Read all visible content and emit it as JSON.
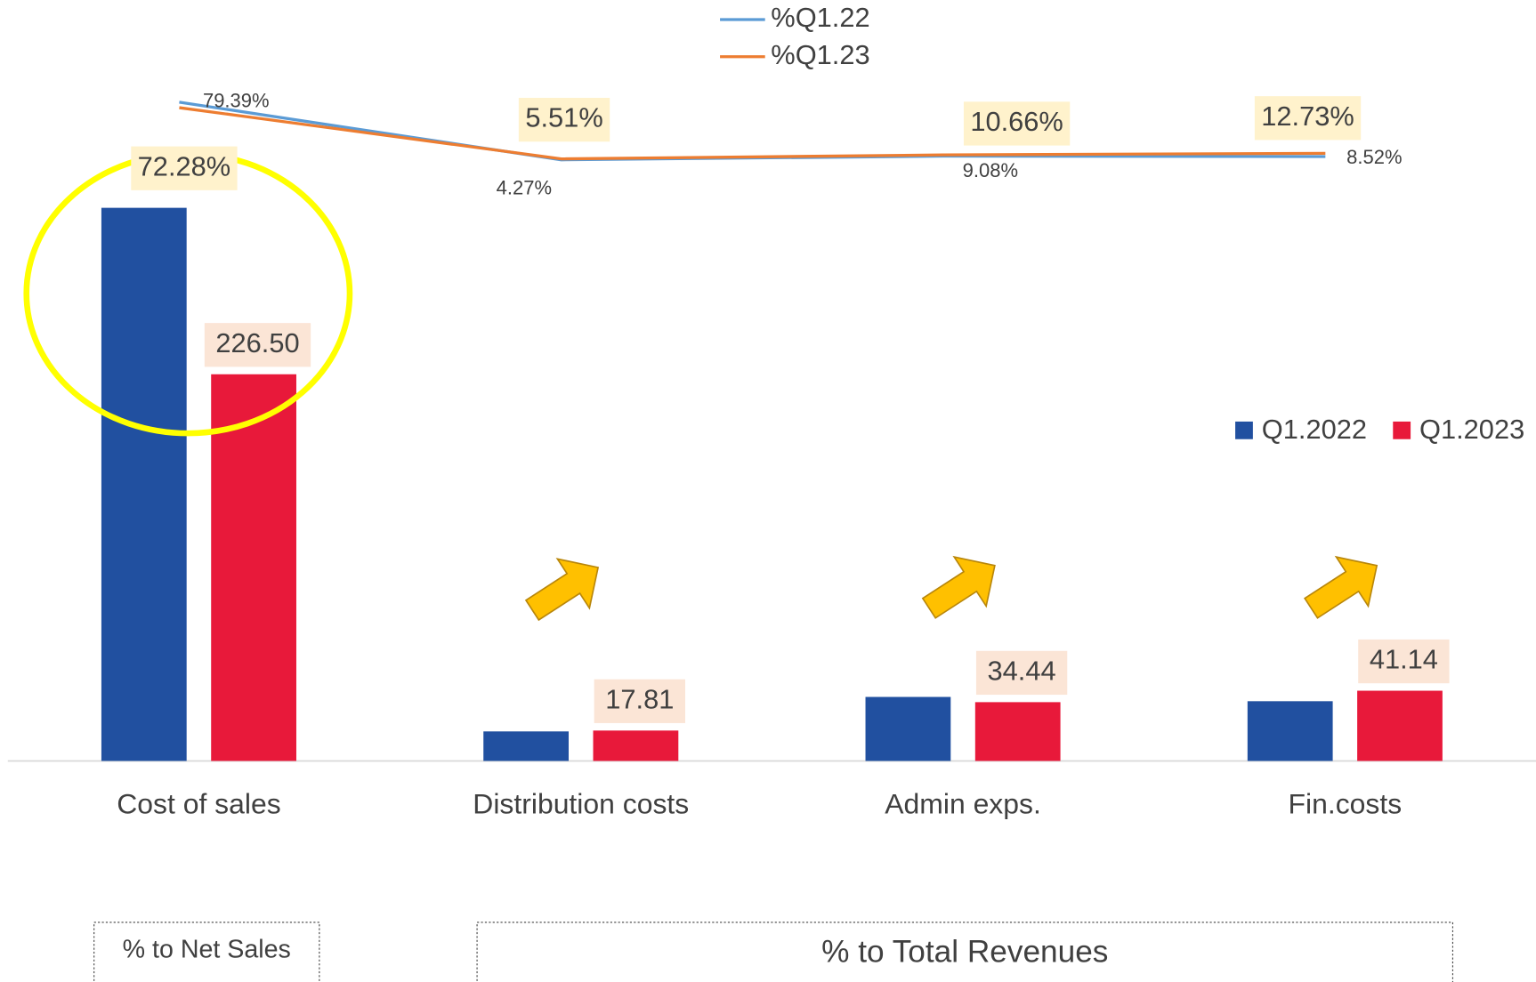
{
  "chart_data": {
    "type": "bar",
    "categories": [
      "Cost of sales",
      "Distribution costs",
      "Admin exps.",
      "Fin.costs"
    ],
    "series": [
      {
        "name": "Q1.2022",
        "color": "#2150a0",
        "values": [
          324,
          17.3,
          37.5,
          35
        ]
      },
      {
        "name": "Q1.2023",
        "color": "#e8193a",
        "values": [
          226.5,
          17.81,
          34.44,
          41.14
        ],
        "value_labels": [
          "226.50",
          "17.81",
          "34.44",
          "41.14"
        ]
      },
      {
        "name": "%Q1.22",
        "type": "line",
        "axis": "y2",
        "color": "#5b9bd5",
        "values": [
          79.39,
          4.27,
          9.08,
          8.52
        ],
        "value_labels": [
          "79.39%",
          "4.27%",
          "9.08%",
          "8.52%"
        ]
      },
      {
        "name": "%Q1.23",
        "type": "line",
        "axis": "y2",
        "color": "#ed7d31",
        "values": [
          72.28,
          5.51,
          10.66,
          12.73
        ],
        "value_labels": [
          "72.28%",
          "5.51%",
          "10.66%",
          "12.73%"
        ]
      }
    ],
    "ylim": [
      0,
      440
    ],
    "y2lim": [
      -780,
      200
    ],
    "annotations": [
      "% to Net Sales",
      "% to Total Revenues"
    ]
  }
}
